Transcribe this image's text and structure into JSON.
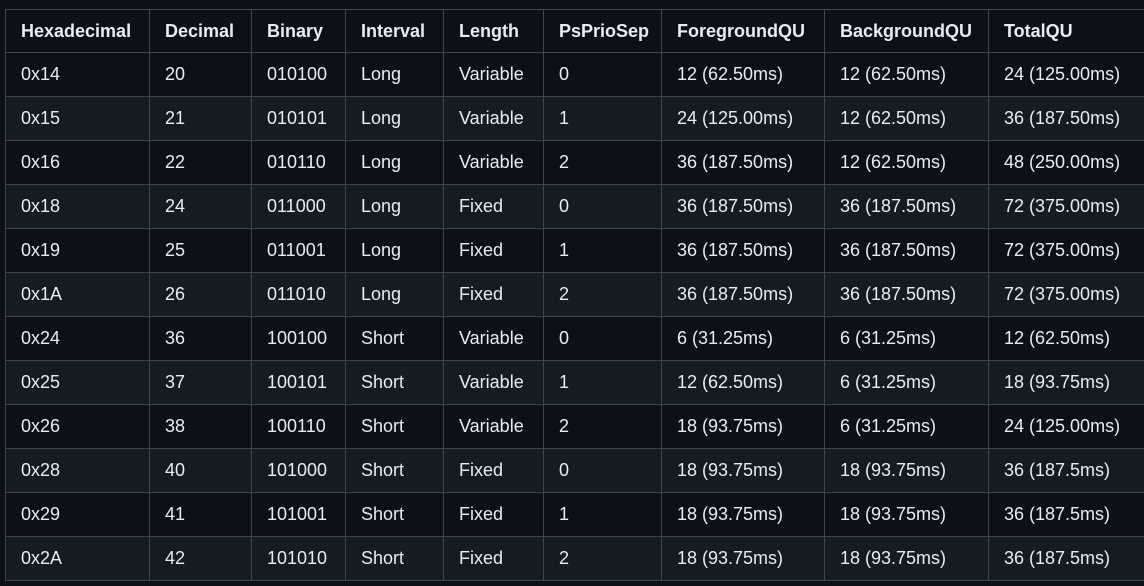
{
  "table": {
    "headers": [
      "Hexadecimal",
      "Decimal",
      "Binary",
      "Interval",
      "Length",
      "PsPrioSep",
      "ForegroundQU",
      "BackgroundQU",
      "TotalQU"
    ],
    "rows": [
      [
        "0x14",
        "20",
        "010100",
        "Long",
        "Variable",
        "0",
        "12 (62.50ms)",
        "12 (62.50ms)",
        "24 (125.00ms)"
      ],
      [
        "0x15",
        "21",
        "010101",
        "Long",
        "Variable",
        "1",
        "24 (125.00ms)",
        "12 (62.50ms)",
        "36 (187.50ms)"
      ],
      [
        "0x16",
        "22",
        "010110",
        "Long",
        "Variable",
        "2",
        "36 (187.50ms)",
        "12 (62.50ms)",
        "48 (250.00ms)"
      ],
      [
        "0x18",
        "24",
        "011000",
        "Long",
        "Fixed",
        "0",
        "36 (187.50ms)",
        "36 (187.50ms)",
        "72 (375.00ms)"
      ],
      [
        "0x19",
        "25",
        "011001",
        "Long",
        "Fixed",
        "1",
        "36 (187.50ms)",
        "36 (187.50ms)",
        "72 (375.00ms)"
      ],
      [
        "0x1A",
        "26",
        "011010",
        "Long",
        "Fixed",
        "2",
        "36 (187.50ms)",
        "36 (187.50ms)",
        "72 (375.00ms)"
      ],
      [
        "0x24",
        "36",
        "100100",
        "Short",
        "Variable",
        "0",
        "6 (31.25ms)",
        "6 (31.25ms)",
        "12 (62.50ms)"
      ],
      [
        "0x25",
        "37",
        "100101",
        "Short",
        "Variable",
        "1",
        "12 (62.50ms)",
        "6 (31.25ms)",
        "18 (93.75ms)"
      ],
      [
        "0x26",
        "38",
        "100110",
        "Short",
        "Variable",
        "2",
        "18 (93.75ms)",
        "6 (31.25ms)",
        "24 (125.00ms)"
      ],
      [
        "0x28",
        "40",
        "101000",
        "Short",
        "Fixed",
        "0",
        "18 (93.75ms)",
        "18 (93.75ms)",
        "36 (187.5ms)"
      ],
      [
        "0x29",
        "41",
        "101001",
        "Short",
        "Fixed",
        "1",
        "18 (93.75ms)",
        "18 (93.75ms)",
        "36 (187.5ms)"
      ],
      [
        "0x2A",
        "42",
        "101010",
        "Short",
        "Fixed",
        "2",
        "18 (93.75ms)",
        "18 (93.75ms)",
        "36 (187.5ms)"
      ]
    ]
  },
  "colors": {
    "background": "#0d1117",
    "row_alt": "#151b23",
    "border": "#3d444d",
    "text": "#e6edf3"
  }
}
